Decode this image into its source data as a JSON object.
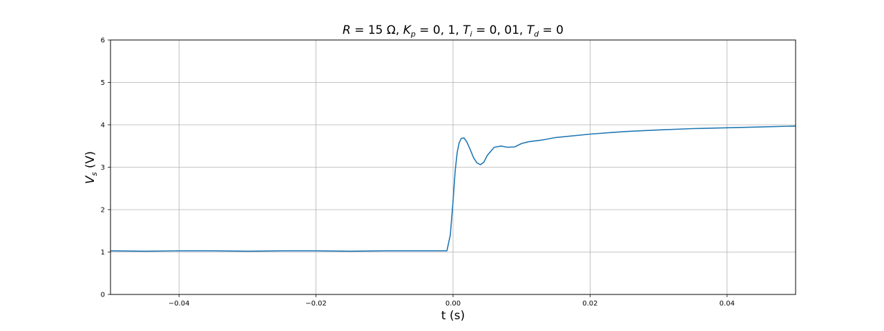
{
  "chart_data": {
    "type": "line",
    "title": {
      "R": "R",
      "R_value": " = 15 Ω,  ",
      "Kp": "K",
      "Kp_sub": "p",
      "Kp_value": " = 0, 1,  ",
      "Ti": "T",
      "Ti_sub": "i",
      "Ti_value": " = 0, 01,  ",
      "Td": "T",
      "Td_sub": "d",
      "Td_value": " = 0"
    },
    "xlabel": "t (s)",
    "ylabel": {
      "main": "V",
      "sub": "s",
      "unit": " (V)"
    },
    "xlim": [
      -0.05,
      0.05
    ],
    "ylim": [
      0,
      6
    ],
    "xticks": [
      -0.04,
      -0.02,
      0.0,
      0.02,
      0.04
    ],
    "xtick_labels": [
      "−0.04",
      "−0.02",
      "0.00",
      "0.02",
      "0.04"
    ],
    "yticks": [
      0,
      1,
      2,
      3,
      4,
      5,
      6
    ],
    "ytick_labels": [
      "0",
      "1",
      "2",
      "3",
      "4",
      "5",
      "6"
    ],
    "grid": true,
    "series": [
      {
        "color": "#1f77b4",
        "x": [
          -0.05,
          -0.045,
          -0.04,
          -0.035,
          -0.03,
          -0.025,
          -0.02,
          -0.015,
          -0.01,
          -0.005,
          -0.0009,
          -0.0004,
          0.0,
          0.0003,
          0.0006,
          0.0009,
          0.0012,
          0.0016,
          0.002,
          0.0025,
          0.003,
          0.0035,
          0.004,
          0.0045,
          0.005,
          0.006,
          0.007,
          0.008,
          0.009,
          0.01,
          0.011,
          0.013,
          0.015,
          0.02,
          0.025,
          0.03,
          0.035,
          0.04,
          0.045,
          0.05
        ],
        "y": [
          1.03,
          1.02,
          1.03,
          1.03,
          1.02,
          1.03,
          1.03,
          1.02,
          1.03,
          1.03,
          1.03,
          1.4,
          2.2,
          2.9,
          3.35,
          3.58,
          3.68,
          3.69,
          3.6,
          3.42,
          3.22,
          3.1,
          3.06,
          3.12,
          3.28,
          3.47,
          3.5,
          3.47,
          3.48,
          3.56,
          3.6,
          3.64,
          3.7,
          3.78,
          3.84,
          3.88,
          3.91,
          3.93,
          3.95,
          3.97
        ]
      }
    ]
  }
}
